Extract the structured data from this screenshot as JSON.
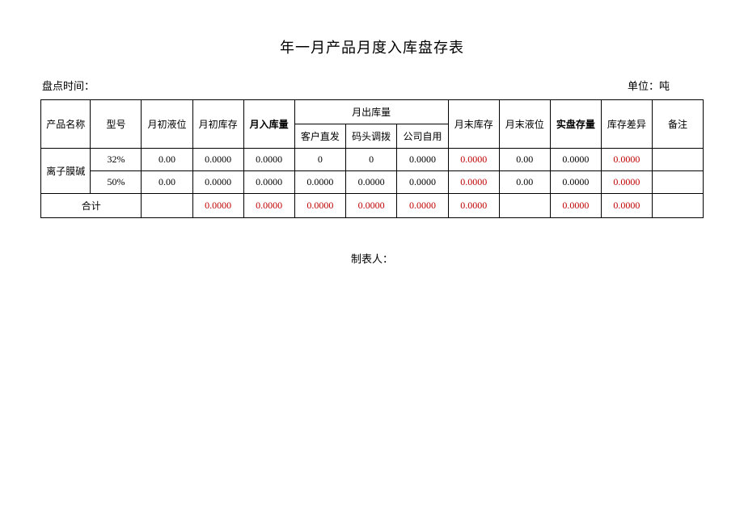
{
  "title": "年一月产品月度入库盘存表",
  "meta": {
    "left_label": "盘点时间：",
    "right_label": "单位：吨"
  },
  "columns": {
    "product_name": "产品名称",
    "model": "型号",
    "start_level": "月初液位",
    "start_stock": "月初库存",
    "month_in": "月入库量",
    "month_out_group": "月出库量",
    "out_direct": "客户直发",
    "out_transfer": "码头调拨",
    "out_self": "公司自用",
    "end_stock": "月末库存",
    "end_level": "月末液位",
    "actual": "实盘存量",
    "diff": "库存差异",
    "remark": "备注"
  },
  "product_group_name": "离子膜碱",
  "rows": [
    {
      "model": "32%",
      "start_level": "0.00",
      "start_stock": "0.0000",
      "month_in": "0.0000",
      "out_direct": "0",
      "out_transfer": "0",
      "out_self": "0.0000",
      "end_stock": "0.0000",
      "end_level": "0.00",
      "actual": "0.0000",
      "diff": "0.0000",
      "remark": ""
    },
    {
      "model": "50%",
      "start_level": "0.00",
      "start_stock": "0.0000",
      "month_in": "0.0000",
      "out_direct": "0.0000",
      "out_transfer": "0.0000",
      "out_self": "0.0000",
      "end_stock": "0.0000",
      "end_level": "0.00",
      "actual": "0.0000",
      "diff": "0.0000",
      "remark": ""
    }
  ],
  "total": {
    "label": "合计",
    "start_level": "",
    "start_stock": "0.0000",
    "month_in": "0.0000",
    "out_direct": "0.0000",
    "out_transfer": "0.0000",
    "out_self": "0.0000",
    "end_stock": "0.0000",
    "end_level": "",
    "actual": "0.0000",
    "diff": "0.0000",
    "remark": ""
  },
  "footer": "制表人：",
  "styling": {
    "red_columns": [
      "end_stock",
      "diff"
    ],
    "red_total_columns": [
      "start_stock",
      "month_in",
      "out_direct",
      "out_transfer",
      "out_self",
      "end_stock",
      "actual",
      "diff"
    ],
    "bold_headers": [
      "month_in",
      "actual"
    ],
    "colors": {
      "text": "#000000",
      "red": "#c00000",
      "border": "#000000",
      "background": "#ffffff"
    },
    "font_size_body": 12,
    "font_size_title": 18
  }
}
